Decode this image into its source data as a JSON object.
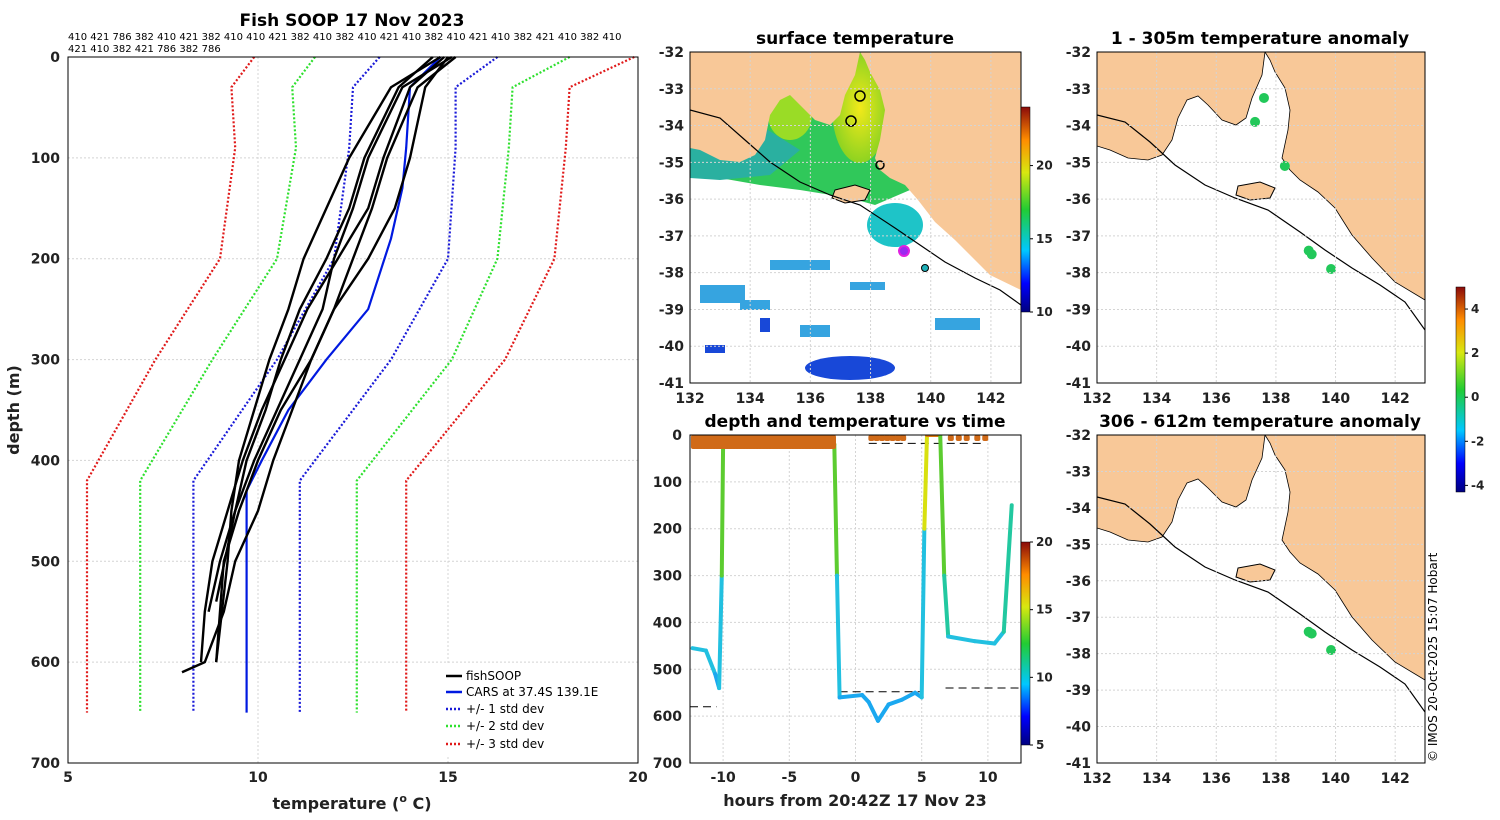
{
  "colors": {
    "land": "#f8c898",
    "fish": "#000000",
    "cars": "#0019e0",
    "sd1": "#1a1ad8",
    "sd2": "#2ee02e",
    "sd3": "#e01a1a"
  },
  "profile_panel": {
    "title": "Fish SOOP 17 Nov 2023",
    "ids_line1": "410 421 786 382 410 421 382 410 410 421 382 410 382 410 421 410 382 410 421 410 382 421 410 382 410",
    "ids_line2": "421 410 382 421 786 382 786",
    "xlabel": "temperature (",
    "xlabel_sup": "o",
    "xlabel_end": " C)",
    "ylabel": "depth (m)",
    "legend": [
      "fishSOOP",
      "CARS at 37.4S 139.1E",
      "+/- 1 std dev",
      "+/- 2 std dev",
      "+/- 3 std dev"
    ]
  },
  "sst_panel": {
    "title": "surface temperature"
  },
  "time_panel": {
    "title": "depth and temperature vs time",
    "xlabel": "hours from 20:42Z 17 Nov 23"
  },
  "anom1_panel": {
    "title": "1 - 305m temperature anomaly"
  },
  "anom2_panel": {
    "title": "306 - 612m temperature anomaly"
  },
  "credit": "© IMOS 20-Oct-2025 15:07 Hobart",
  "chart_data": [
    {
      "type": "line",
      "title": "Fish SOOP 17 Nov 2023",
      "xlabel": "temperature (o C)",
      "ylabel": "depth (m)",
      "xlim": [
        5,
        20
      ],
      "ylim": [
        700,
        0
      ],
      "xticks": [
        5,
        10,
        15,
        20
      ],
      "yticks": [
        0,
        100,
        200,
        300,
        400,
        500,
        600,
        700
      ],
      "cars": {
        "depth": [
          0,
          30,
          90,
          130,
          180,
          250,
          300,
          350,
          400,
          430,
          650
        ],
        "temp": [
          14.8,
          14.0,
          13.9,
          13.8,
          13.5,
          12.9,
          11.8,
          10.8,
          10.1,
          9.7,
          9.7
        ]
      },
      "envelopes": [
        {
          "name": "+/- 1 std dev",
          "minus": {
            "depth": [
              0,
              30,
              90,
              200,
              300,
              420,
              650
            ],
            "temp": [
              13.2,
              12.5,
              12.4,
              12.0,
              10.5,
              8.3,
              8.3
            ]
          },
          "plus": {
            "depth": [
              0,
              30,
              90,
              200,
              300,
              420,
              650
            ],
            "temp": [
              16.3,
              15.2,
              15.2,
              15.0,
              13.5,
              11.1,
              11.1
            ]
          }
        },
        {
          "name": "+/- 2 std dev",
          "minus": {
            "depth": [
              0,
              30,
              90,
              200,
              300,
              420,
              650
            ],
            "temp": [
              11.5,
              10.9,
              11.0,
              10.5,
              8.8,
              6.9,
              6.9
            ]
          },
          "plus": {
            "depth": [
              0,
              30,
              90,
              200,
              300,
              420,
              650
            ],
            "temp": [
              18.2,
              16.7,
              16.6,
              16.3,
              15.1,
              12.6,
              12.6
            ]
          }
        },
        {
          "name": "+/- 3 std dev",
          "minus": {
            "depth": [
              0,
              30,
              90,
              200,
              300,
              420,
              650
            ],
            "temp": [
              9.9,
              9.3,
              9.4,
              9.0,
              7.3,
              5.5,
              5.5
            ]
          },
          "plus": {
            "depth": [
              0,
              30,
              90,
              200,
              300,
              420,
              650
            ],
            "temp": [
              19.9,
              18.2,
              18.1,
              17.8,
              16.5,
              13.9,
              13.9
            ]
          }
        }
      ],
      "fishsoop": [
        {
          "depth": [
            0,
            30,
            100,
            150,
            200,
            250,
            300,
            350,
            400,
            450,
            500,
            550,
            600,
            610
          ],
          "temp": [
            15.0,
            14.4,
            14.0,
            13.6,
            12.9,
            12.0,
            11.4,
            10.9,
            10.4,
            10.0,
            9.4,
            9.1,
            8.6,
            8.0
          ]
        },
        {
          "depth": [
            0,
            30,
            100,
            150,
            200,
            250,
            300,
            350,
            400,
            450,
            500,
            550
          ],
          "temp": [
            14.6,
            13.7,
            12.8,
            12.4,
            11.8,
            11.1,
            10.6,
            10.2,
            9.7,
            9.4,
            9.0,
            8.7
          ]
        },
        {
          "depth": [
            0,
            30,
            100,
            150,
            200,
            250,
            300,
            350,
            400,
            450,
            500,
            600
          ],
          "temp": [
            14.8,
            13.5,
            12.4,
            11.8,
            11.2,
            10.8,
            10.3,
            9.9,
            9.5,
            9.3,
            9.2,
            8.9
          ]
        },
        {
          "depth": [
            0,
            30,
            100,
            150,
            200,
            250,
            300,
            350,
            400,
            450,
            500,
            550,
            600
          ],
          "temp": [
            14.9,
            14.0,
            13.3,
            12.9,
            12.1,
            11.3,
            10.7,
            10.1,
            9.6,
            9.2,
            8.8,
            8.6,
            8.5
          ]
        },
        {
          "depth": [
            0,
            30,
            100,
            150,
            200,
            250,
            300,
            350,
            400,
            450,
            540
          ],
          "temp": [
            15.1,
            13.8,
            12.9,
            12.5,
            12.0,
            11.7,
            11.1,
            10.5,
            9.9,
            9.4,
            8.9
          ]
        },
        {
          "depth": [
            0,
            30,
            100,
            150,
            200,
            250,
            300,
            350,
            400,
            450,
            500,
            600
          ],
          "temp": [
            15.2,
            14.2,
            13.4,
            13.0,
            12.5,
            12.0,
            11.4,
            10.6,
            10.0,
            9.5,
            9.1,
            8.9
          ]
        }
      ]
    },
    {
      "type": "heatmap",
      "title": "surface temperature",
      "xlim": [
        132,
        143
      ],
      "ylim": [
        -41,
        -32
      ],
      "xticks": [
        132,
        134,
        136,
        138,
        140,
        142
      ],
      "yticks": [
        -32,
        -33,
        -34,
        -35,
        -36,
        -37,
        -38,
        -39,
        -40,
        -41
      ],
      "colorbar": {
        "range": [
          10,
          24
        ],
        "ticks": [
          10,
          15,
          20
        ]
      }
    },
    {
      "type": "line",
      "title": "depth and temperature vs time",
      "xlabel": "hours from 20:42Z 17 Nov 23",
      "xlim": [
        -12.5,
        12.5
      ],
      "ylim": [
        700,
        0
      ],
      "xticks": [
        -10,
        -5,
        0,
        5,
        10
      ],
      "xtick_labels": [
        "-10",
        "-5",
        "0",
        "5",
        "10"
      ],
      "yticks": [
        0,
        100,
        200,
        300,
        400,
        500,
        600,
        700
      ],
      "colorbar": {
        "range": [
          5,
          20
        ],
        "ticks": [
          5,
          10,
          15,
          20
        ]
      },
      "track": [
        {
          "h": -12.3,
          "d": 455
        },
        {
          "h": -11.3,
          "d": 460
        },
        {
          "h": -10.6,
          "d": 510
        },
        {
          "h": -10.3,
          "d": 540
        },
        {
          "h": -10.1,
          "d": 300
        },
        {
          "h": -10.0,
          "d": 20
        },
        {
          "h": -1.6,
          "d": 20
        },
        {
          "h": -1.4,
          "d": 300
        },
        {
          "h": -1.2,
          "d": 560
        },
        {
          "h": 0.5,
          "d": 555
        },
        {
          "h": 1.0,
          "d": 570
        },
        {
          "h": 1.7,
          "d": 610
        },
        {
          "h": 2.5,
          "d": 575
        },
        {
          "h": 3.5,
          "d": 565
        },
        {
          "h": 4.5,
          "d": 550
        },
        {
          "h": 5.0,
          "d": 560
        },
        {
          "h": 5.2,
          "d": 200
        },
        {
          "h": 5.4,
          "d": 0
        },
        {
          "h": 6.4,
          "d": 0
        },
        {
          "h": 6.7,
          "d": 300
        },
        {
          "h": 7.0,
          "d": 430
        },
        {
          "h": 9.0,
          "d": 440
        },
        {
          "h": 10.5,
          "d": 445
        },
        {
          "h": 11.2,
          "d": 420
        },
        {
          "h": 11.8,
          "d": 150
        }
      ],
      "reference_depths": [
        {
          "h0": -12.5,
          "h1": -10.5,
          "d": 580
        },
        {
          "h0": -1.2,
          "h1": 5.0,
          "d": 548
        },
        {
          "h0": 6.8,
          "h1": 12.5,
          "d": 540
        },
        {
          "h0": 1.0,
          "h1": 9.5,
          "d": 18
        },
        {
          "h0": -10.8,
          "h1": -1.6,
          "d": 22
        }
      ]
    },
    {
      "type": "scatter",
      "title": "1 - 305m temperature anomaly",
      "xlim": [
        132,
        143
      ],
      "ylim": [
        -41,
        -32
      ],
      "xticks": [
        132,
        134,
        136,
        138,
        140,
        142
      ],
      "yticks": [
        -32,
        -33,
        -34,
        -35,
        -36,
        -37,
        -38,
        -39,
        -40,
        -41
      ],
      "colorbar": {
        "range": [
          -4.3,
          5.0
        ],
        "ticks": [
          -4,
          -2,
          0,
          2,
          4
        ]
      },
      "points": [
        {
          "lon": 137.6,
          "lat": -33.25,
          "anom": 0.3
        },
        {
          "lon": 137.3,
          "lat": -33.9,
          "anom": 0.2
        },
        {
          "lon": 138.3,
          "lat": -35.1,
          "anom": 0.4
        },
        {
          "lon": 139.1,
          "lat": -37.4,
          "anom": 0.3
        },
        {
          "lon": 139.2,
          "lat": -37.5,
          "anom": 0.2
        },
        {
          "lon": 139.85,
          "lat": -37.9,
          "anom": 0.3
        }
      ]
    },
    {
      "type": "scatter",
      "title": "306 - 612m temperature anomaly",
      "xlim": [
        132,
        143
      ],
      "ylim": [
        -41,
        -32
      ],
      "xticks": [
        132,
        134,
        136,
        138,
        140,
        142
      ],
      "yticks": [
        -32,
        -33,
        -34,
        -35,
        -36,
        -37,
        -38,
        -39,
        -40,
        -41
      ],
      "points": [
        {
          "lon": 139.1,
          "lat": -37.4,
          "anom": 0.3
        },
        {
          "lon": 139.2,
          "lat": -37.45,
          "anom": 0.2
        },
        {
          "lon": 139.85,
          "lat": -37.9,
          "anom": 0.3
        }
      ]
    }
  ]
}
